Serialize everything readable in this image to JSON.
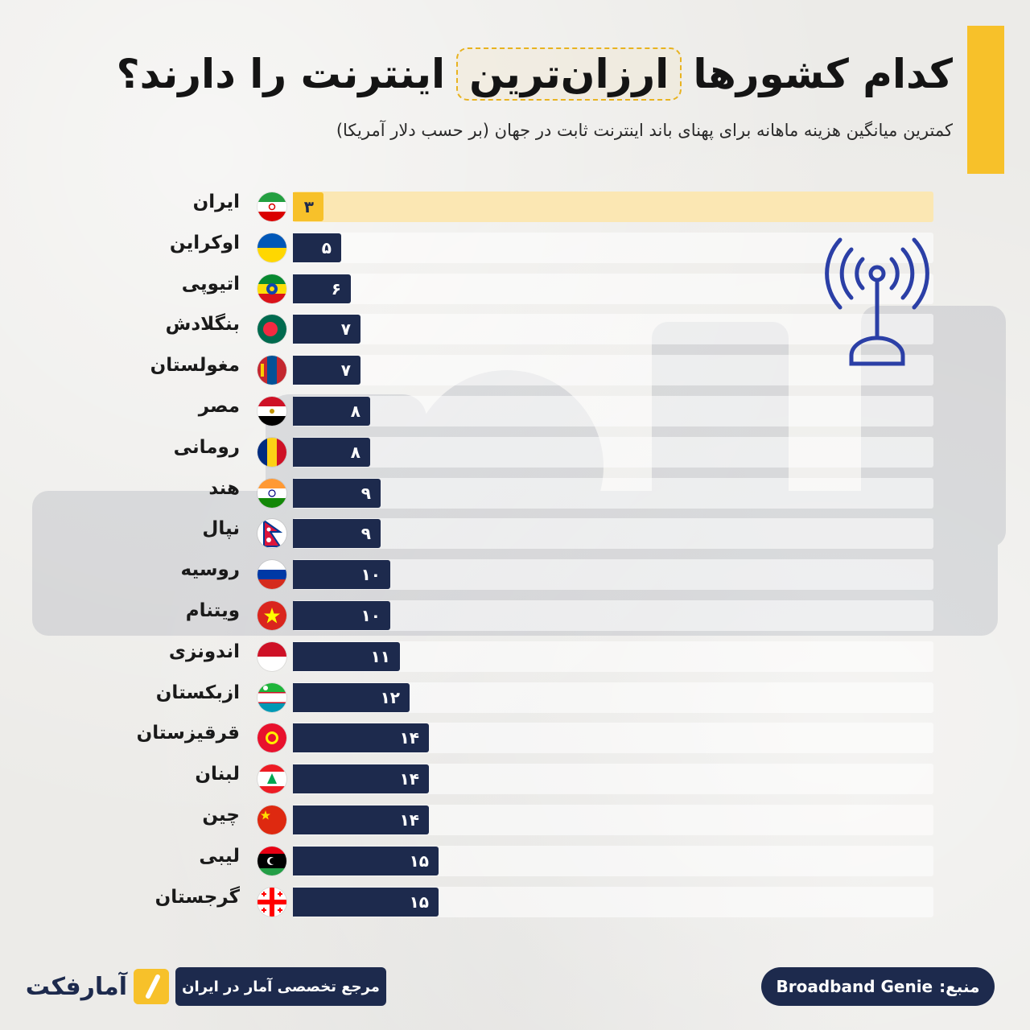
{
  "title": {
    "part1": "کدام کشورها",
    "highlight": "ارزان‌ترین",
    "part2": "اینترنت را دارند؟"
  },
  "subtitle": "کمترین میانگین هزینه ماهانه برای پهنای باند اینترنت ثابت در جهان (بر حسب دلار آمریکا)",
  "colors": {
    "bar": "#1d2a4d",
    "highlight_bar": "#f7c12a",
    "highlight_track": "#fbe7b3",
    "accent": "#f7c12a"
  },
  "chart_data": {
    "type": "bar",
    "orientation": "horizontal",
    "categories": [
      "ایران",
      "اوکراین",
      "اتیوپی",
      "بنگلادش",
      "مغولستان",
      "مصر",
      "رومانی",
      "هند",
      "نپال",
      "روسیه",
      "ویتنام",
      "اندونزی",
      "ازبکستان",
      "قرقیزستان",
      "لبنان",
      "چین",
      "لیبی",
      "گرجستان"
    ],
    "values": [
      3,
      5,
      6,
      7,
      7,
      8,
      8,
      9,
      9,
      10,
      10,
      11,
      12,
      14,
      14,
      14,
      15,
      15
    ],
    "value_labels": [
      "۳",
      "۵",
      "۶",
      "۷",
      "۷",
      "۸",
      "۸",
      "۹",
      "۹",
      "۱۰",
      "۱۰",
      "۱۱",
      "۱۲",
      "۱۴",
      "۱۴",
      "۱۴",
      "۱۵",
      "۱۵"
    ],
    "highlighted_category": "ایران",
    "flags": [
      "iran-flag-icon",
      "ukraine-flag-icon",
      "ethiopia-flag-icon",
      "bangladesh-flag-icon",
      "mongolia-flag-icon",
      "egypt-flag-icon",
      "romania-flag-icon",
      "india-flag-icon",
      "nepal-flag-icon",
      "russia-flag-icon",
      "vietnam-flag-icon",
      "indonesia-flag-icon",
      "uzbekistan-flag-icon",
      "kyrgyzstan-flag-icon",
      "lebanon-flag-icon",
      "china-flag-icon",
      "libya-flag-icon",
      "georgia-flag-icon"
    ],
    "xlim": [
      0,
      66
    ],
    "grid": false,
    "legend": "none"
  },
  "footer": {
    "brand_tagline": "مرجع تخصصی آمار در ایران",
    "brand_logo_text": "آمارفکت",
    "source_label": "منبع:",
    "source_name": "Broadband Genie"
  }
}
